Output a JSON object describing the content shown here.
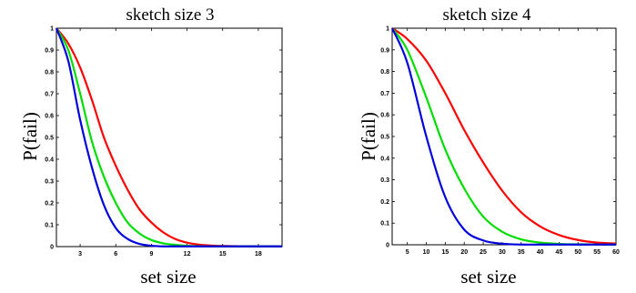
{
  "chart_data": [
    {
      "type": "line",
      "title": "sketch size 3",
      "xlabel": "set size",
      "ylabel": "P(fail)",
      "xlim": [
        1,
        20
      ],
      "ylim": [
        0,
        1
      ],
      "xticks": [
        3,
        6,
        9,
        12,
        15,
        18
      ],
      "yticks": [
        0,
        0.1,
        0.2,
        0.3,
        0.4,
        0.5,
        0.6,
        0.7,
        0.8,
        0.9,
        1
      ],
      "ytick_labels": [
        "0",
        "0.1",
        "0.2",
        "0.3",
        "0.4",
        "0.5",
        "0.6",
        "0.7",
        "0.8",
        "0.9",
        "1"
      ],
      "grid": false,
      "series": [
        {
          "color": "#ff0000",
          "x": [
            1,
            2,
            3,
            4,
            5,
            6,
            7,
            8,
            9,
            10,
            11,
            12,
            13,
            14,
            15,
            16,
            17,
            18,
            19,
            20
          ],
          "y": [
            1.0,
            0.93,
            0.82,
            0.67,
            0.5,
            0.37,
            0.26,
            0.17,
            0.11,
            0.065,
            0.035,
            0.018,
            0.009,
            0.005,
            0.003,
            0.002,
            0.001,
            0.001,
            0.001,
            0.001
          ]
        },
        {
          "color": "#00dd00",
          "x": [
            1,
            2,
            3,
            4,
            5,
            6,
            7,
            8,
            9,
            10,
            11,
            12,
            13,
            14,
            15,
            16,
            17,
            18,
            19,
            20
          ],
          "y": [
            1.0,
            0.9,
            0.7,
            0.48,
            0.32,
            0.2,
            0.11,
            0.06,
            0.03,
            0.015,
            0.008,
            0.004,
            0.002,
            0.001,
            0.001,
            0.001,
            0.001,
            0.001,
            0.001,
            0.001
          ]
        },
        {
          "color": "#0000dd",
          "x": [
            1,
            2,
            3,
            4,
            5,
            6,
            7,
            8,
            9,
            10,
            11,
            12,
            13,
            14,
            15,
            16,
            17,
            18,
            19,
            20
          ],
          "y": [
            1.0,
            0.85,
            0.58,
            0.36,
            0.19,
            0.085,
            0.035,
            0.012,
            0.004,
            0.001,
            0.001,
            0.001,
            0.001,
            0.001,
            0.001,
            0.001,
            0.001,
            0.001,
            0.001,
            0.001
          ]
        }
      ]
    },
    {
      "type": "line",
      "title": "sketch size 4",
      "xlabel": "set size",
      "ylabel": "P(fail)",
      "xlim": [
        1,
        60
      ],
      "ylim": [
        0,
        1
      ],
      "xticks": [
        5,
        10,
        15,
        20,
        25,
        30,
        35,
        40,
        45,
        50,
        55,
        60
      ],
      "yticks": [
        0,
        0.1,
        0.2,
        0.3,
        0.4,
        0.5,
        0.6,
        0.7,
        0.8,
        0.9,
        1
      ],
      "ytick_labels": [
        "0",
        "0.1",
        "0.2",
        "0.3",
        "0.4",
        "0.5",
        "0.6",
        "0.7",
        "0.8",
        "0.9",
        "1"
      ],
      "grid": false,
      "series": [
        {
          "color": "#ff0000",
          "x": [
            1,
            5,
            10,
            15,
            20,
            25,
            30,
            35,
            40,
            45,
            50,
            55,
            60
          ],
          "y": [
            1.0,
            0.95,
            0.85,
            0.7,
            0.53,
            0.38,
            0.25,
            0.15,
            0.085,
            0.045,
            0.022,
            0.01,
            0.006
          ]
        },
        {
          "color": "#00dd00",
          "x": [
            1,
            5,
            10,
            15,
            20,
            25,
            30,
            35,
            40,
            45,
            50,
            55,
            60
          ],
          "y": [
            1.0,
            0.9,
            0.68,
            0.44,
            0.26,
            0.13,
            0.06,
            0.025,
            0.01,
            0.004,
            0.002,
            0.001,
            0.001
          ]
        },
        {
          "color": "#0000dd",
          "x": [
            1,
            5,
            10,
            15,
            20,
            25,
            30,
            35,
            40,
            45,
            50,
            55,
            60
          ],
          "y": [
            1.0,
            0.84,
            0.5,
            0.22,
            0.07,
            0.02,
            0.005,
            0.001,
            0.001,
            0.001,
            0.001,
            0.001,
            0.001
          ]
        }
      ]
    }
  ]
}
